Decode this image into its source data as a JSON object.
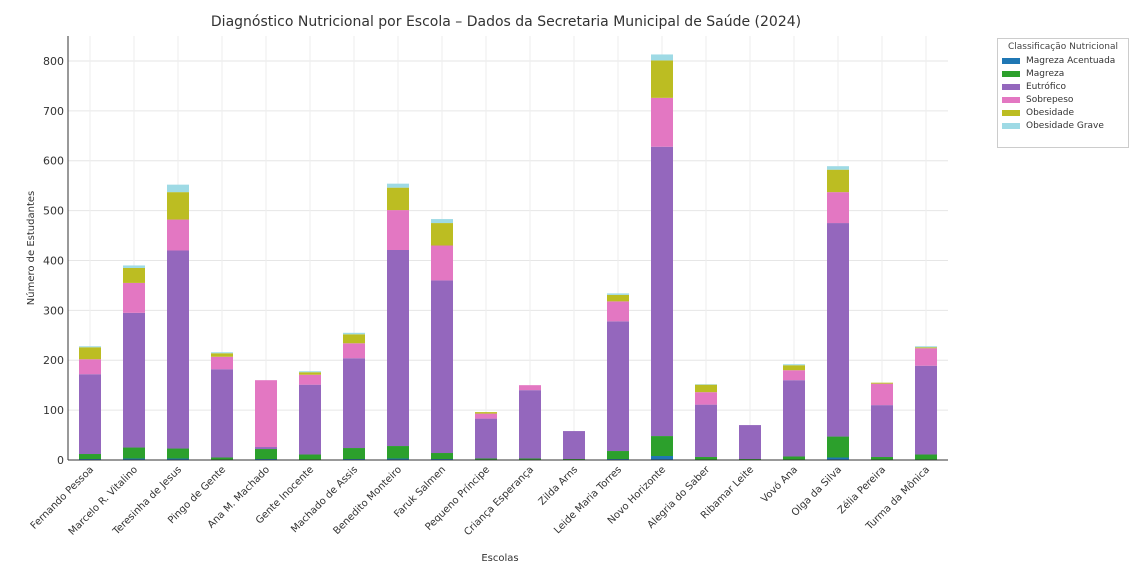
{
  "chart_data": {
    "type": "bar",
    "stacked": true,
    "title": "Diagnóstico Nutricional por Escola – Dados da Secretaria Municipal de Saúde (2024)",
    "xlabel": "Escolas",
    "ylabel": "Número de Estudantes",
    "ylim": [
      0,
      850
    ],
    "yticks": [
      0,
      100,
      200,
      300,
      400,
      500,
      600,
      700,
      800
    ],
    "grid": true,
    "legend_title": "Classificação Nutricional",
    "legend_position": "top-right, outside plot",
    "categories": [
      "Fernando Pessoa",
      "Marcelo R. Vitalino",
      "Teresinha de Jesus",
      "Pingo de Gente",
      "Ana M. Machado",
      "Gente Inocente",
      "Machado de Assis",
      "Benedito Monteiro",
      "Faruk Salmen",
      "Pequeno Príncipe",
      "Criança Esperança",
      "Zilda Arns",
      "Leide Maria Torres",
      "Novo Horizonte",
      "Alegria do Saber",
      "Ribamar Leite",
      "Vovó Ana",
      "Olga da Silva",
      "Zélia Pereira",
      "Turma da Mônica"
    ],
    "series": [
      {
        "name": "Magreza Acentuada",
        "color": "#1f77b4",
        "values": [
          2,
          3,
          3,
          1,
          2,
          1,
          2,
          3,
          2,
          0,
          0,
          0,
          2,
          8,
          1,
          0,
          1,
          5,
          1,
          1
        ]
      },
      {
        "name": "Magreza",
        "color": "#2ca02c",
        "values": [
          10,
          22,
          20,
          4,
          20,
          10,
          22,
          25,
          12,
          3,
          3,
          2,
          16,
          40,
          5,
          2,
          6,
          42,
          5,
          10
        ]
      },
      {
        "name": "Eutrófico",
        "color": "#9467bd",
        "values": [
          160,
          270,
          397,
          177,
          4,
          140,
          180,
          393,
          346,
          80,
          137,
          56,
          260,
          580,
          105,
          68,
          153,
          428,
          104,
          178
        ]
      },
      {
        "name": "Sobrepeso",
        "color": "#e377c2",
        "values": [
          30,
          60,
          62,
          25,
          134,
          20,
          30,
          80,
          70,
          10,
          10,
          0,
          40,
          98,
          25,
          0,
          20,
          62,
          43,
          35
        ]
      },
      {
        "name": "Obesidade",
        "color": "#bcbd22",
        "values": [
          24,
          30,
          55,
          7,
          0,
          5,
          18,
          45,
          45,
          3,
          0,
          0,
          13,
          75,
          15,
          0,
          10,
          45,
          2,
          2
        ]
      },
      {
        "name": "Obesidade Grave",
        "color": "#9edae5",
        "values": [
          2,
          5,
          15,
          2,
          0,
          2,
          3,
          8,
          8,
          0,
          0,
          0,
          3,
          12,
          1,
          0,
          2,
          7,
          0,
          2
        ]
      }
    ]
  }
}
